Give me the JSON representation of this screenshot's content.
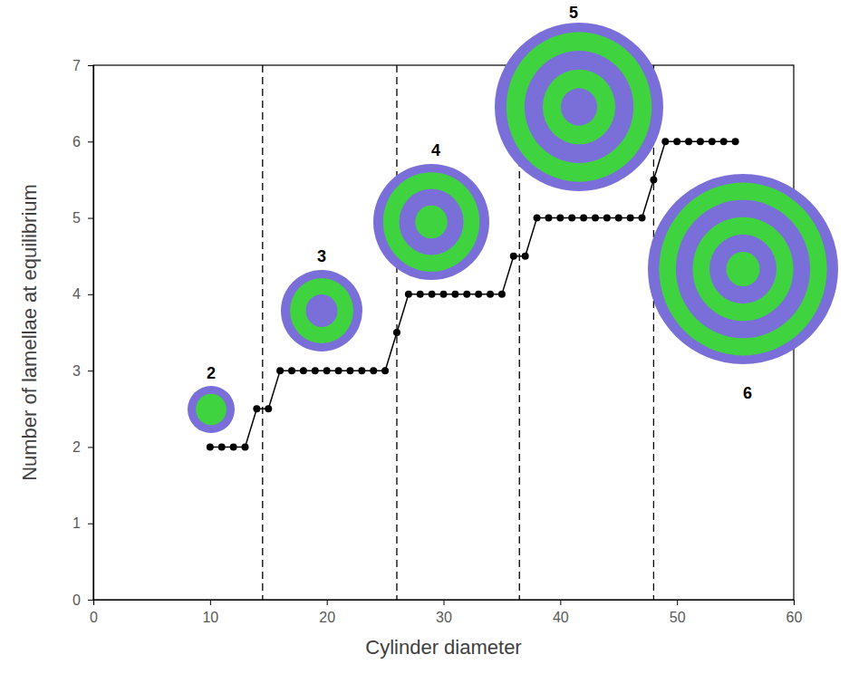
{
  "chart_data": {
    "type": "line",
    "x_label": "Cylinder diameter",
    "y_label": "Number of lamellae at equilibrium",
    "x": [
      10,
      11,
      12,
      13,
      14,
      15,
      16,
      17,
      18,
      19,
      20,
      21,
      22,
      23,
      24,
      25,
      26,
      27,
      28,
      29,
      30,
      31,
      32,
      33,
      34,
      35,
      36,
      37,
      38,
      39,
      40,
      41,
      42,
      43,
      44,
      45,
      46,
      47,
      48,
      49,
      50,
      51,
      52,
      53,
      54,
      55
    ],
    "values": [
      2,
      2,
      2,
      2,
      2.5,
      2.5,
      3,
      3,
      3,
      3,
      3,
      3,
      3,
      3,
      3,
      3,
      3.5,
      4,
      4,
      4,
      4,
      4,
      4,
      4,
      4,
      4,
      4.5,
      4.5,
      5,
      5,
      5,
      5,
      5,
      5,
      5,
      5,
      5,
      5,
      5.5,
      6,
      6,
      6,
      6,
      6,
      6,
      6
    ],
    "color": "#000000",
    "marker": "circle",
    "line_style": "solid",
    "xlim": [
      0,
      60
    ],
    "xticks": [
      0,
      10,
      20,
      30,
      40,
      50,
      60
    ],
    "ylim": [
      0,
      7
    ],
    "yticks": [
      0,
      1,
      2,
      3,
      4,
      5,
      6,
      7
    ],
    "grid": false,
    "boundaries": [
      14.5,
      26,
      36.5,
      48
    ],
    "insets": [
      "2",
      "3",
      "4",
      "5",
      "6"
    ]
  }
}
